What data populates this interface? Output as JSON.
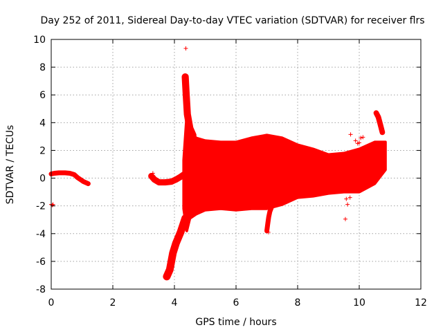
{
  "chart_data": {
    "type": "scatter",
    "title": "Day 252 of 2011, Sidereal Day-to-day VTEC variation (SDTVAR) for receiver flrs",
    "xlabel": "GPS time / hours",
    "ylabel": "SDTVAR / TECUs",
    "xlim": [
      0,
      12
    ],
    "ylim": [
      -8,
      10
    ],
    "xticks": [
      "0",
      "2",
      "4",
      "6",
      "8",
      "10",
      "12"
    ],
    "yticks": [
      "-8",
      "-6",
      "-4",
      "-2",
      "0",
      "2",
      "4",
      "6",
      "8",
      "10"
    ],
    "grid": true,
    "marker": "plus",
    "color": "#ff0000",
    "envelope": {
      "x": [
        4.3,
        4.4,
        4.5,
        4.7,
        5.0,
        5.5,
        6.0,
        6.5,
        7.0,
        7.5,
        8.0,
        8.5,
        9.0,
        9.5,
        10.0,
        10.5,
        10.85
      ],
      "upper": [
        1.3,
        4.5,
        3.6,
        2.9,
        2.7,
        2.6,
        2.6,
        2.9,
        3.1,
        2.9,
        2.4,
        2.1,
        1.7,
        1.8,
        2.1,
        2.6,
        2.6
      ],
      "lower": [
        -2.2,
        -3.8,
        -2.9,
        -2.6,
        -2.3,
        -2.2,
        -2.3,
        -2.2,
        -2.2,
        -1.9,
        -1.4,
        -1.3,
        -1.1,
        -1.0,
        -1.0,
        -0.4,
        0.6
      ]
    },
    "segments": [
      {
        "x": [
          0.0,
          0.1,
          0.25,
          0.45,
          0.6,
          0.75,
          0.85,
          0.95,
          1.05,
          1.15,
          1.2
        ],
        "y": [
          0.3,
          0.35,
          0.38,
          0.38,
          0.35,
          0.25,
          0.05,
          -0.1,
          -0.25,
          -0.35,
          -0.4
        ],
        "band": 0.1
      },
      {
        "x": [
          3.25,
          3.35,
          3.5,
          3.7,
          3.9,
          4.05,
          4.2,
          4.3
        ],
        "y": [
          0.15,
          -0.1,
          -0.3,
          -0.3,
          -0.25,
          -0.1,
          0.1,
          0.25
        ],
        "band": 0.15
      },
      {
        "x": [
          3.75,
          3.85,
          3.95,
          4.05,
          4.2,
          4.35
        ],
        "y": [
          -7.1,
          -6.6,
          -5.4,
          -4.7,
          -3.9,
          -2.9
        ],
        "band": 0.2
      },
      {
        "x": [
          4.35,
          4.38,
          4.42,
          4.5,
          4.6
        ],
        "y": [
          7.3,
          6.1,
          4.6,
          3.6,
          3.1
        ],
        "band": 0.18
      },
      {
        "x": [
          7.0,
          7.03,
          7.06,
          7.1,
          7.15
        ],
        "y": [
          -3.8,
          -3.3,
          -2.8,
          -2.4,
          -2.1
        ],
        "band": 0.1
      },
      {
        "x": [
          10.55,
          10.62,
          10.68,
          10.75
        ],
        "y": [
          4.7,
          4.4,
          3.9,
          3.3
        ],
        "band": 0.12
      }
    ],
    "points": [
      [
        0.0,
        -1.9
      ],
      [
        0.03,
        -1.95
      ],
      [
        0.06,
        -1.9
      ],
      [
        4.37,
        9.35
      ],
      [
        3.3,
        0.35
      ],
      [
        7.05,
        -3.9
      ],
      [
        9.55,
        -2.95
      ],
      [
        9.58,
        -1.5
      ],
      [
        9.62,
        -1.9
      ],
      [
        9.7,
        -1.4
      ],
      [
        9.72,
        3.15
      ],
      [
        9.95,
        2.5
      ],
      [
        10.05,
        2.9
      ],
      [
        10.12,
        2.95
      ],
      [
        9.88,
        2.7
      ],
      [
        10.0,
        2.55
      ]
    ]
  }
}
